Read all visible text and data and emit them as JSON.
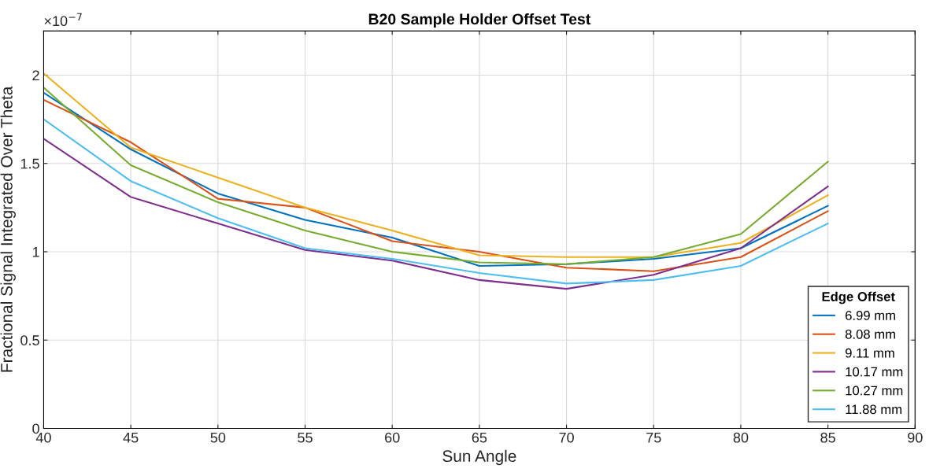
{
  "chart_data": {
    "type": "line",
    "title": "B20 Sample Holder Offset Test",
    "xlabel": "Sun Angle",
    "ylabel": "Fractional Signal Integrated Over Theta",
    "legend_title": "Edge Offset",
    "legend": "bottom right",
    "grid": true,
    "annotations": [
      "×10$^{−7}$"
    ],
    "x": [
      40,
      45,
      50,
      55,
      60,
      65,
      70,
      75,
      80,
      85
    ],
    "xlim": [
      40,
      90
    ],
    "xticks": [
      40,
      45,
      50,
      55,
      60,
      65,
      70,
      75,
      80,
      85,
      90
    ],
    "ylim": [
      0,
      2.25
    ],
    "yticks": [
      0,
      0.5,
      1,
      1.5,
      2
    ],
    "series": [
      {
        "name": "6.99 mm",
        "color": "#0072bd",
        "values": [
          1.9,
          1.58,
          1.33,
          1.18,
          1.08,
          0.92,
          0.93,
          0.96,
          1.02,
          1.26
        ]
      },
      {
        "name": "8.08 mm",
        "color": "#d95319",
        "values": [
          1.86,
          1.62,
          1.3,
          1.25,
          1.06,
          1.0,
          0.91,
          0.89,
          0.97,
          1.23
        ]
      },
      {
        "name": "9.11 mm",
        "color": "#edb120",
        "values": [
          2.01,
          1.59,
          1.42,
          1.25,
          1.12,
          0.98,
          0.97,
          0.97,
          1.05,
          1.32
        ]
      },
      {
        "name": "10.17 mm",
        "color": "#7e2f8e",
        "values": [
          1.64,
          1.31,
          1.16,
          1.01,
          0.95,
          0.84,
          0.79,
          0.87,
          1.02,
          1.37
        ]
      },
      {
        "name": "10.27 mm",
        "color": "#77ac30",
        "values": [
          1.93,
          1.49,
          1.28,
          1.12,
          1.0,
          0.94,
          0.93,
          0.97,
          1.1,
          1.51
        ]
      },
      {
        "name": "11.88 mm",
        "color": "#4dbeee",
        "values": [
          1.75,
          1.4,
          1.19,
          1.02,
          0.96,
          0.88,
          0.82,
          0.84,
          0.92,
          1.16
        ]
      }
    ]
  }
}
